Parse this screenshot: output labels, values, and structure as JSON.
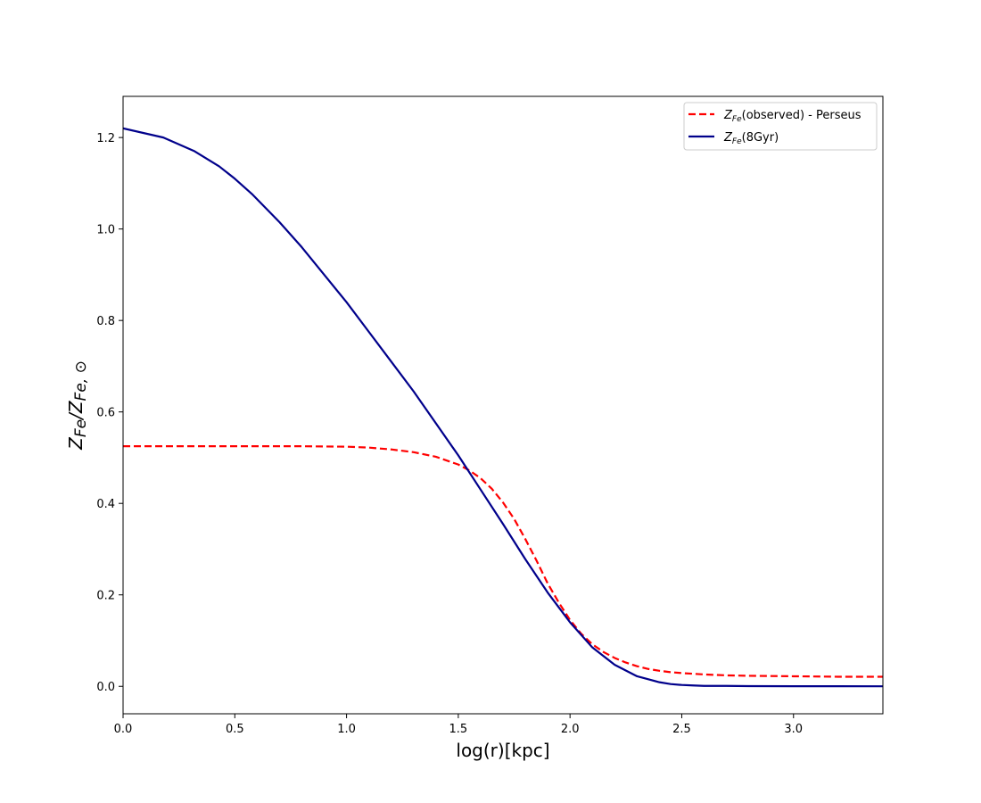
{
  "chart_data": {
    "type": "line",
    "title": "",
    "xlabel": "log(r)[kpc]",
    "ylabel": "Z_Fe/Z_Fe,⊙",
    "xlim": [
      0.0,
      3.4
    ],
    "ylim": [
      -0.06,
      1.29
    ],
    "x_ticks": [
      0.0,
      0.5,
      1.0,
      1.5,
      2.0,
      2.5,
      3.0
    ],
    "x_tick_labels": [
      "0.0",
      "0.5",
      "1.0",
      "1.5",
      "2.0",
      "2.5",
      "3.0"
    ],
    "y_ticks": [
      0.0,
      0.2,
      0.4,
      0.6,
      0.8,
      1.0,
      1.2
    ],
    "y_tick_labels": [
      "0.0",
      "0.2",
      "0.4",
      "0.6",
      "0.8",
      "1.0",
      "1.2"
    ],
    "grid": false,
    "legend_position": "top-right",
    "series": [
      {
        "name": "Z_Fe(observed) - Perseus",
        "legend_main": "Z",
        "legend_sub": "Fe",
        "legend_rest": "(observed) - Perseus",
        "color": "#ff0000",
        "style": "dashed",
        "x": [
          0.0,
          0.2,
          0.4,
          0.6,
          0.8,
          1.0,
          1.1,
          1.2,
          1.3,
          1.4,
          1.5,
          1.55,
          1.6,
          1.65,
          1.7,
          1.75,
          1.8,
          1.85,
          1.9,
          1.95,
          2.0,
          2.05,
          2.1,
          2.15,
          2.2,
          2.25,
          2.3,
          2.35,
          2.4,
          2.45,
          2.5,
          2.6,
          2.7,
          2.8,
          3.0,
          3.2,
          3.4
        ],
        "y": [
          0.525,
          0.525,
          0.525,
          0.525,
          0.525,
          0.524,
          0.522,
          0.518,
          0.512,
          0.502,
          0.485,
          0.472,
          0.455,
          0.432,
          0.402,
          0.366,
          0.322,
          0.275,
          0.225,
          0.183,
          0.145,
          0.115,
          0.092,
          0.075,
          0.062,
          0.052,
          0.044,
          0.038,
          0.034,
          0.031,
          0.029,
          0.026,
          0.024,
          0.023,
          0.022,
          0.021,
          0.021
        ]
      },
      {
        "name": "Z_Fe(8Gyr)",
        "legend_main": "Z",
        "legend_sub": "Fe",
        "legend_rest": "(8Gyr)",
        "color": "#00008b",
        "style": "solid",
        "x": [
          0.0,
          0.18,
          0.32,
          0.43,
          0.5,
          0.58,
          0.7,
          0.8,
          0.9,
          1.0,
          1.1,
          1.2,
          1.3,
          1.4,
          1.5,
          1.6,
          1.7,
          1.8,
          1.9,
          2.0,
          2.1,
          2.2,
          2.3,
          2.4,
          2.45,
          2.5,
          2.55,
          2.6,
          2.7,
          2.8,
          3.0,
          3.2,
          3.4
        ],
        "y": [
          1.22,
          1.2,
          1.17,
          1.137,
          1.11,
          1.075,
          1.015,
          0.96,
          0.9,
          0.84,
          0.775,
          0.71,
          0.645,
          0.575,
          0.505,
          0.43,
          0.355,
          0.278,
          0.205,
          0.14,
          0.085,
          0.047,
          0.022,
          0.009,
          0.005,
          0.003,
          0.002,
          0.001,
          0.001,
          0.0005,
          0.0003,
          0.0002,
          0.0001
        ]
      }
    ]
  }
}
